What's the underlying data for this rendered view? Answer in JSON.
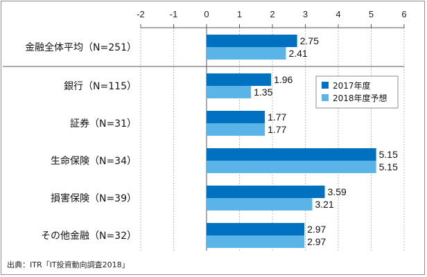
{
  "chart_data": {
    "type": "bar",
    "orientation": "horizontal",
    "categories": [
      "金融全体平均（N=251）",
      "銀行（N=115）",
      "証券（N=31）",
      "生命保険（N=34）",
      "損害保険（N=39）",
      "その他金融（N=32）"
    ],
    "series": [
      {
        "name": "2017年度",
        "color": "#0070c0",
        "values": [
          2.75,
          1.96,
          1.77,
          5.15,
          3.59,
          2.97
        ]
      },
      {
        "name": "2018年度予想",
        "color": "#5ab4e8",
        "values": [
          2.41,
          1.35,
          1.77,
          5.15,
          3.21,
          2.97
        ]
      }
    ],
    "value_labels": [
      [
        "2.75",
        "2.41"
      ],
      [
        "1.96",
        "1.35"
      ],
      [
        "1.77",
        "1.77"
      ],
      [
        "5.15",
        "5.15"
      ],
      [
        "3.59",
        "3.21"
      ],
      [
        "2.97",
        "2.97"
      ]
    ],
    "xlim": [
      -2,
      6
    ],
    "ticks": [
      "-2",
      "-1",
      "0",
      "1",
      "2",
      "3",
      "4",
      "5",
      "6"
    ],
    "grid": true,
    "legend_position": "top-right"
  },
  "source_note": "出典：ITR「IT投資動向調査2018」"
}
